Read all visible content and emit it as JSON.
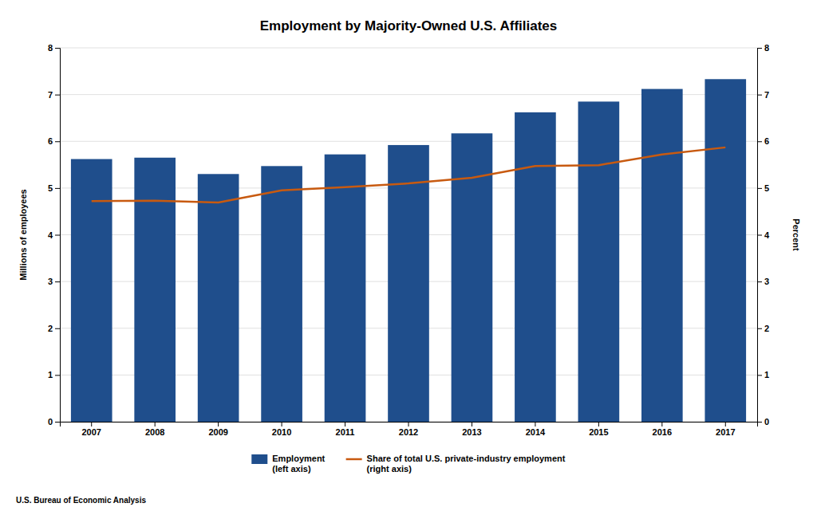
{
  "chart_data": {
    "type": "bar",
    "title": "Employment by Majority-Owned U.S. Affiliates",
    "categories": [
      "2007",
      "2008",
      "2009",
      "2010",
      "2011",
      "2012",
      "2013",
      "2014",
      "2015",
      "2016",
      "2017"
    ],
    "series": [
      {
        "name": "Employment\n(left axis)",
        "type": "bar",
        "color": "#1F4E8C",
        "values": [
          5.62,
          5.65,
          5.3,
          5.47,
          5.72,
          5.92,
          6.17,
          6.62,
          6.85,
          7.12,
          7.33
        ]
      },
      {
        "name": "Share of total U.S. private-industry employment\n(right axis)",
        "type": "line",
        "color": "#C85A10",
        "axis": "y2",
        "values": [
          4.72,
          4.73,
          4.69,
          4.95,
          5.02,
          5.1,
          5.22,
          5.47,
          5.49,
          5.72,
          5.87
        ]
      }
    ],
    "ylabel": "Millions of employees",
    "y2label": "Percent",
    "ylim": [
      0,
      8
    ],
    "yticks": [
      0,
      1,
      2,
      3,
      4,
      5,
      6,
      7,
      8
    ],
    "y2lim": [
      0,
      8
    ],
    "y2ticks": [
      0,
      1,
      2,
      3,
      4,
      5,
      6,
      7,
      8
    ],
    "grid": true,
    "legend": "bottom",
    "annotations": [
      "U.S. Bureau of Economic Analysis"
    ]
  }
}
